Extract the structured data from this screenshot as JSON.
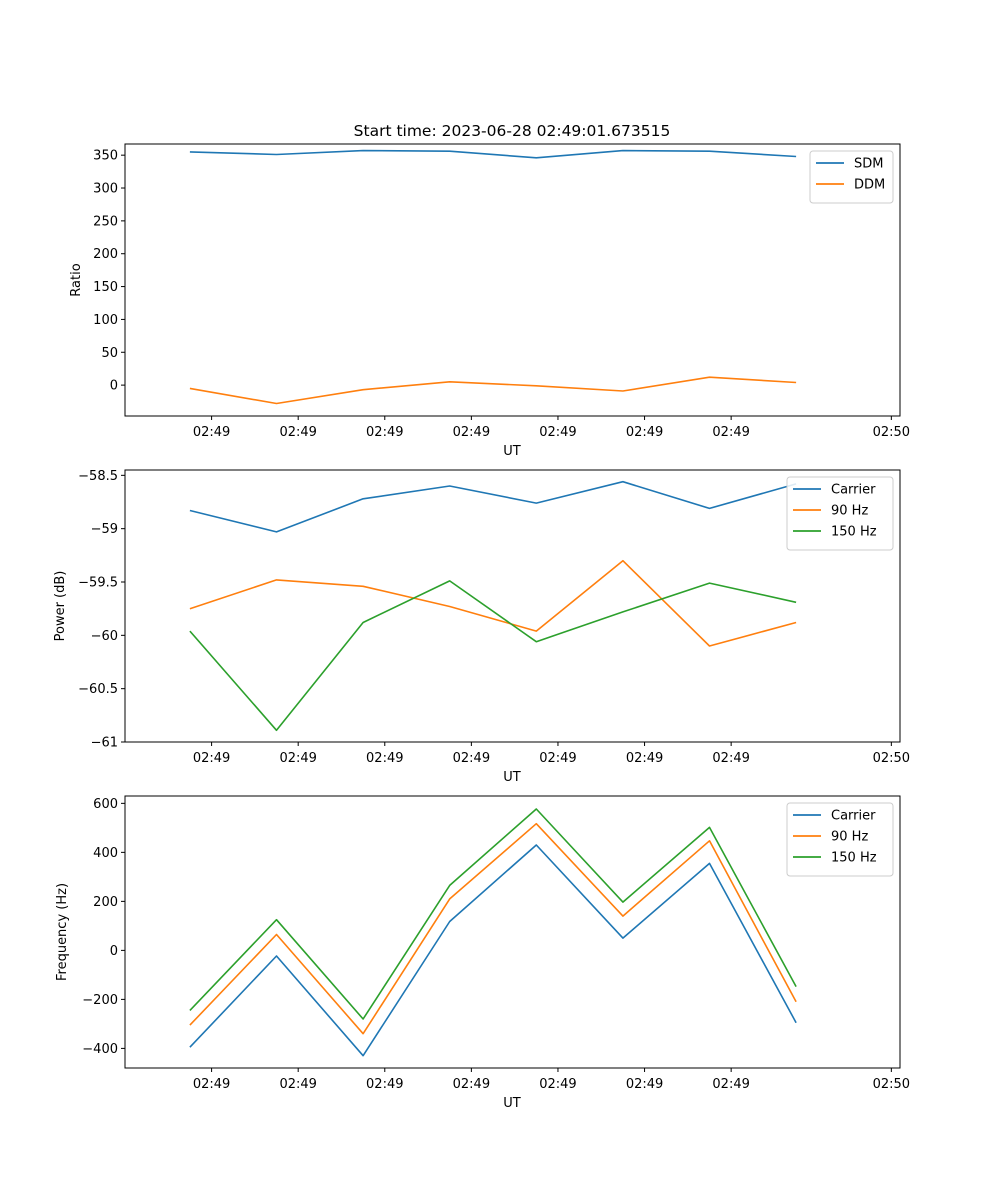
{
  "chart_data": [
    {
      "type": "line",
      "title": "Start time: 2023-06-28 02:49:01.673515",
      "xlabel": "UT",
      "ylabel": "Ratio",
      "x_tick_labels": [
        "02:49",
        "02:49",
        "02:49",
        "02:49",
        "02:49",
        "02:49",
        "02:49"
      ],
      "x_end_tick_label": "02:50",
      "x": [
        1,
        2,
        3,
        4,
        5,
        6,
        7,
        8
      ],
      "xlim": [
        0.25,
        9.2
      ],
      "ylim": [
        -47,
        367
      ],
      "yticks": [
        0,
        50,
        100,
        150,
        200,
        250,
        300,
        350
      ],
      "legend": "top-right",
      "grid": false,
      "series": [
        {
          "name": "SDM",
          "color": "#1f77b4",
          "values": [
            355,
            351,
            357,
            356,
            346,
            357,
            356,
            348
          ]
        },
        {
          "name": "DDM",
          "color": "#ff7f0e",
          "values": [
            -5,
            -28,
            -7,
            5,
            -1,
            -9,
            12,
            4
          ]
        }
      ]
    },
    {
      "type": "line",
      "title": "",
      "xlabel": "UT",
      "ylabel": "Power (dB)",
      "x_tick_labels": [
        "02:49",
        "02:49",
        "02:49",
        "02:49",
        "02:49",
        "02:49",
        "02:49"
      ],
      "x_end_tick_label": "02:50",
      "x": [
        1,
        2,
        3,
        4,
        5,
        6,
        7,
        8
      ],
      "xlim": [
        0.25,
        9.2
      ],
      "ylim": [
        -61.0,
        -58.45
      ],
      "yticks": [
        -61.0,
        -60.5,
        -60.0,
        -59.5,
        -59.0,
        -58.5
      ],
      "legend": "top-right",
      "grid": false,
      "series": [
        {
          "name": "Carrier",
          "color": "#1f77b4",
          "values": [
            -58.83,
            -59.03,
            -58.72,
            -58.6,
            -58.76,
            -58.56,
            -58.81,
            -58.58
          ]
        },
        {
          "name": "90 Hz",
          "color": "#ff7f0e",
          "values": [
            -59.75,
            -59.48,
            -59.54,
            -59.73,
            -59.96,
            -59.3,
            -60.1,
            -59.88
          ]
        },
        {
          "name": "150 Hz",
          "color": "#2ca02c",
          "values": [
            -59.96,
            -60.89,
            -59.88,
            -59.49,
            -60.06,
            -59.78,
            -59.51,
            -59.69
          ]
        }
      ]
    },
    {
      "type": "line",
      "title": "",
      "xlabel": "UT",
      "ylabel": "Frequency (Hz)",
      "x_tick_labels": [
        "02:49",
        "02:49",
        "02:49",
        "02:49",
        "02:49",
        "02:49",
        "02:49"
      ],
      "x_end_tick_label": "02:50",
      "x": [
        1,
        2,
        3,
        4,
        5,
        6,
        7,
        8
      ],
      "xlim": [
        0.25,
        9.2
      ],
      "ylim": [
        -480,
        630
      ],
      "yticks": [
        -400,
        -200,
        0,
        200,
        400,
        600
      ],
      "legend": "top-right",
      "grid": false,
      "series": [
        {
          "name": "Carrier",
          "color": "#1f77b4",
          "values": [
            -395,
            -23,
            -430,
            118,
            430,
            50,
            355,
            -295
          ]
        },
        {
          "name": "90 Hz",
          "color": "#ff7f0e",
          "values": [
            -305,
            65,
            -340,
            210,
            517,
            140,
            447,
            -210
          ]
        },
        {
          "name": "150 Hz",
          "color": "#2ca02c",
          "values": [
            -245,
            125,
            -280,
            265,
            577,
            197,
            502,
            -148
          ]
        }
      ]
    }
  ]
}
